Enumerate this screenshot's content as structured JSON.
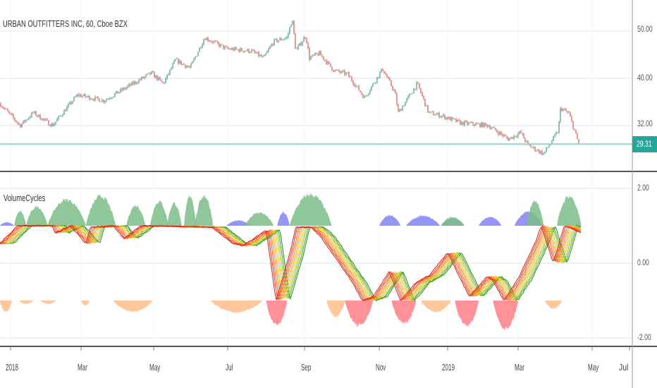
{
  "header": {
    "title": "URBAN OUTFITTERS INC, 60, Cboe BZX"
  },
  "indicator": {
    "name": "VolumeCycles"
  },
  "price_axis": {
    "ticks": [
      "50.00",
      "40.00",
      "32.00"
    ],
    "last_price": "29.31"
  },
  "indicator_axis": {
    "ticks": [
      "2.00",
      "0.00",
      "-2.00"
    ]
  },
  "time_axis": {
    "ticks": [
      "2018",
      "Mar",
      "May",
      "Jul",
      "Sep",
      "Nov",
      "2019",
      "Mar",
      "May",
      "Jul"
    ]
  },
  "colors": {
    "up_candle": "#3f9a7a",
    "down_candle": "#d9534f",
    "last_price_line": "#8fd8c4",
    "last_price_tag": "#26a69a",
    "green_area": "#7bbd88",
    "blue_area": "#7b7bf2",
    "orange_area": "#ffbd8a",
    "red_area": "#ff7f86",
    "ribbon": [
      "#138a13",
      "#4aa21c",
      "#8fbd20",
      "#c8cc22",
      "#f0c020",
      "#f7a020",
      "#f88018",
      "#f25a14",
      "#e83010",
      "#e01010"
    ]
  },
  "chart_data": [
    {
      "type": "candlestick",
      "title": "URBAN OUTFITTERS INC, 60, Cboe BZX",
      "y_scale": "log",
      "yticks": [
        50,
        40,
        32
      ],
      "last_price": 29.31,
      "grid": true,
      "series": [
        {
          "t": "2017-12-23",
          "close": 35.5
        },
        {
          "t": "2018-01-09",
          "close": 32.0
        },
        {
          "t": "2018-01-20",
          "close": 34.0
        },
        {
          "t": "2018-02-05",
          "close": 32.0
        },
        {
          "t": "2018-02-26",
          "close": 37.0
        },
        {
          "t": "2018-03-20",
          "close": 36.0
        },
        {
          "t": "2018-04-29",
          "close": 41.0
        },
        {
          "t": "2018-05-09",
          "close": 39.0
        },
        {
          "t": "2018-05-19",
          "close": 43.6
        },
        {
          "t": "2018-05-31",
          "close": 42.0
        },
        {
          "t": "2018-06-12",
          "close": 48.5
        },
        {
          "t": "2018-06-30",
          "close": 46.0
        },
        {
          "t": "2018-07-20",
          "close": 45.5
        },
        {
          "t": "2018-07-30",
          "close": 44.0
        },
        {
          "t": "2018-08-07",
          "close": 47.6
        },
        {
          "t": "2018-08-18",
          "close": 48.5
        },
        {
          "t": "2018-08-22",
          "close": 53.0
        },
        {
          "t": "2018-08-25",
          "close": 45.5
        },
        {
          "t": "2018-09-02",
          "close": 49.0
        },
        {
          "t": "2018-09-05",
          "close": 44.0
        },
        {
          "t": "2018-09-13",
          "close": 45.0
        },
        {
          "t": "2018-09-25",
          "close": 41.5
        },
        {
          "t": "2018-10-06",
          "close": 40.8
        },
        {
          "t": "2018-10-20",
          "close": 36.5
        },
        {
          "t": "2018-11-04",
          "close": 41.8
        },
        {
          "t": "2018-11-15",
          "close": 37.4
        },
        {
          "t": "2018-11-18",
          "close": 34.0
        },
        {
          "t": "2018-12-05",
          "close": 39.0
        },
        {
          "t": "2018-12-15",
          "close": 34.0
        },
        {
          "t": "2018-12-27",
          "close": 33.5
        },
        {
          "t": "2019-01-12",
          "close": 32.4
        },
        {
          "t": "2019-02-04",
          "close": 32.0
        },
        {
          "t": "2019-02-21",
          "close": 30.0
        },
        {
          "t": "2019-03-03",
          "close": 31.0
        },
        {
          "t": "2019-03-09",
          "close": 29.2
        },
        {
          "t": "2019-03-22",
          "close": 28.0
        },
        {
          "t": "2019-04-03",
          "close": 31.2
        },
        {
          "t": "2019-04-05",
          "close": 34.8
        },
        {
          "t": "2019-04-12",
          "close": 33.8
        },
        {
          "t": "2019-04-20",
          "close": 29.31
        }
      ]
    },
    {
      "type": "line",
      "title": "VolumeCycles",
      "yticks": [
        2,
        0,
        -2
      ],
      "ylim": [
        -2.2,
        2.3
      ],
      "ribbon_center": [
        {
          "t": "2017-12-23",
          "v": 0.53
        },
        {
          "t": "2018-01-07",
          "v": 1.0
        },
        {
          "t": "2018-02-05",
          "v": 1.0
        },
        {
          "t": "2018-02-07",
          "v": 0.81
        },
        {
          "t": "2018-02-20",
          "v": 1.0
        },
        {
          "t": "2018-03-05",
          "v": 0.53
        },
        {
          "t": "2018-03-09",
          "v": 0.96
        },
        {
          "t": "2018-03-28",
          "v": 1.0
        },
        {
          "t": "2018-04-06",
          "v": 0.66
        },
        {
          "t": "2018-04-20",
          "v": 1.0
        },
        {
          "t": "2018-06-18",
          "v": 0.96
        },
        {
          "t": "2018-07-05",
          "v": 0.53
        },
        {
          "t": "2018-07-13",
          "v": 0.47
        },
        {
          "t": "2018-07-22",
          "v": 0.66
        },
        {
          "t": "2018-08-01",
          "v": 0.89
        },
        {
          "t": "2018-08-09",
          "v": -1.0
        },
        {
          "t": "2018-08-20",
          "v": 0.25
        },
        {
          "t": "2018-08-25",
          "v": 0.96
        },
        {
          "t": "2018-09-06",
          "v": 0.96
        },
        {
          "t": "2018-09-14",
          "v": 0.72
        },
        {
          "t": "2018-10-10",
          "v": -0.51
        },
        {
          "t": "2018-10-18",
          "v": -1.0
        },
        {
          "t": "2018-10-27",
          "v": -0.9
        },
        {
          "t": "2018-11-10",
          "v": -0.23
        },
        {
          "t": "2018-11-20",
          "v": -1.0
        },
        {
          "t": "2018-12-04",
          "v": -0.51
        },
        {
          "t": "2018-12-16",
          "v": -0.32
        },
        {
          "t": "2019-01-01",
          "v": 0.28
        },
        {
          "t": "2019-01-19",
          "v": -0.89
        },
        {
          "t": "2019-02-03",
          "v": -0.36
        },
        {
          "t": "2019-02-08",
          "v": -0.47
        },
        {
          "t": "2019-02-17",
          "v": -1.0
        },
        {
          "t": "2019-03-01",
          "v": -0.42
        },
        {
          "t": "2019-03-16",
          "v": 0.62
        },
        {
          "t": "2019-03-20",
          "v": 1.0
        },
        {
          "t": "2019-03-30",
          "v": 0.0
        },
        {
          "t": "2019-04-08",
          "v": 1.0
        },
        {
          "t": "2019-04-22",
          "v": 0.81
        }
      ],
      "areas_above": [
        {
          "color": "blue",
          "from": "2017-12-23",
          "to": "2018-01-04",
          "peak": 1.1
        },
        {
          "color": "green",
          "from": "2018-01-04",
          "to": "2018-01-14",
          "peak": 1.42
        },
        {
          "color": "green",
          "from": "2018-01-14",
          "to": "2018-02-01",
          "peak": 1.55
        },
        {
          "color": "green",
          "from": "2018-02-01",
          "to": "2018-03-05",
          "peak": 1.75
        },
        {
          "color": "green",
          "from": "2018-03-05",
          "to": "2018-03-30",
          "peak": 1.85
        },
        {
          "color": "green",
          "from": "2018-04-08",
          "to": "2018-04-24",
          "peak": 1.58
        },
        {
          "color": "green",
          "from": "2018-04-28",
          "to": "2018-05-13",
          "peak": 1.7
        },
        {
          "color": "green",
          "from": "2018-05-12",
          "to": "2018-05-24",
          "peak": 1.65
        },
        {
          "color": "green",
          "from": "2018-05-26",
          "to": "2018-06-05",
          "peak": 1.87
        },
        {
          "color": "green",
          "from": "2018-06-04",
          "to": "2018-06-19",
          "peak": 1.87
        },
        {
          "color": "blue",
          "from": "2018-06-30",
          "to": "2018-07-19",
          "peak": 1.15
        },
        {
          "color": "green",
          "from": "2018-07-15",
          "to": "2018-08-07",
          "peak": 1.38
        },
        {
          "color": "blue",
          "from": "2018-08-10",
          "to": "2018-08-20",
          "peak": 1.38
        },
        {
          "color": "green",
          "from": "2018-08-20",
          "to": "2018-09-23",
          "peak": 1.9
        },
        {
          "color": "blue",
          "from": "2018-11-01",
          "to": "2018-11-20",
          "peak": 1.3
        },
        {
          "color": "blue",
          "from": "2018-11-25",
          "to": "2018-12-25",
          "peak": 1.28
        },
        {
          "color": "blue",
          "from": "2018-12-26",
          "to": "2019-01-15",
          "peak": 1.2
        },
        {
          "color": "green",
          "from": "2018-12-26",
          "to": "2019-01-15",
          "peak": 1.25
        },
        {
          "color": "blue",
          "from": "2019-01-27",
          "to": "2019-02-15",
          "peak": 1.25
        },
        {
          "color": "blue",
          "from": "2019-02-26",
          "to": "2019-03-21",
          "peak": 1.4
        },
        {
          "color": "green",
          "from": "2019-03-08",
          "to": "2019-03-22",
          "peak": 1.72
        },
        {
          "color": "green",
          "from": "2019-04-02",
          "to": "2019-04-22",
          "peak": 1.85
        }
      ],
      "areas_below": [
        {
          "color": "orange",
          "from": "2017-12-23",
          "to": "2018-01-02",
          "peak": -1.32
        },
        {
          "color": "orange",
          "from": "2018-01-08",
          "to": "2018-01-20",
          "peak": -1.1
        },
        {
          "color": "orange",
          "from": "2018-01-26",
          "to": "2018-02-08",
          "peak": -1.1
        },
        {
          "color": "orange",
          "from": "2018-03-01",
          "to": "2018-03-08",
          "peak": -1.15
        },
        {
          "color": "orange",
          "from": "2018-03-28",
          "to": "2018-04-30",
          "peak": -1.32
        },
        {
          "color": "orange",
          "from": "2018-06-17",
          "to": "2018-07-29",
          "peak": -1.34
        },
        {
          "color": "red",
          "from": "2018-08-01",
          "to": "2018-08-18",
          "peak": -1.72
        },
        {
          "color": "orange",
          "from": "2018-09-19",
          "to": "2018-10-04",
          "peak": -1.47
        },
        {
          "color": "red",
          "from": "2018-10-04",
          "to": "2018-10-27",
          "peak": -1.72
        },
        {
          "color": "red",
          "from": "2018-11-12",
          "to": "2018-12-04",
          "peak": -1.66
        },
        {
          "color": "orange",
          "from": "2018-12-08",
          "to": "2019-01-04",
          "peak": -1.32
        },
        {
          "color": "red",
          "from": "2019-01-07",
          "to": "2019-01-27",
          "peak": -1.72
        },
        {
          "color": "red",
          "from": "2019-02-08",
          "to": "2019-03-01",
          "peak": -1.81
        },
        {
          "color": "orange",
          "from": "2019-03-23",
          "to": "2019-04-06",
          "peak": -1.23
        }
      ]
    }
  ]
}
